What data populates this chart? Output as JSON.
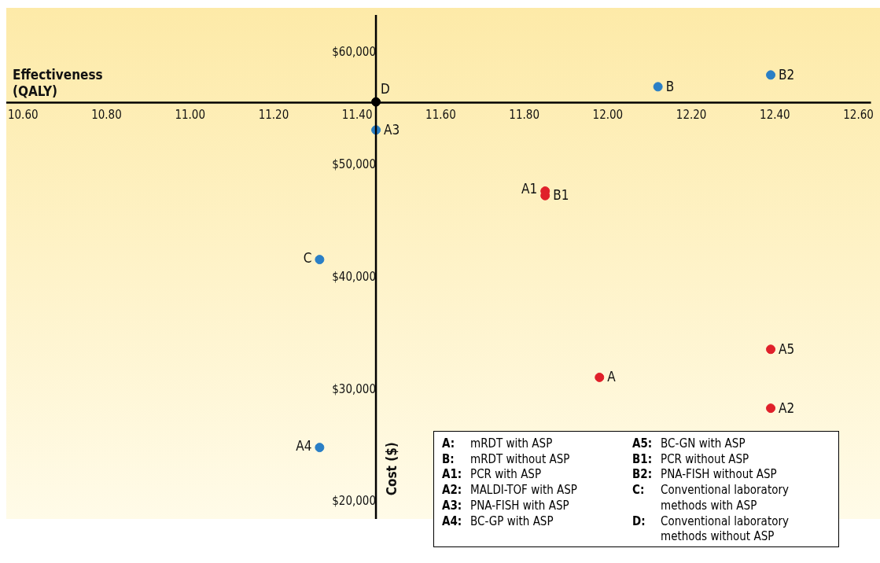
{
  "chart_data": {
    "type": "scatter",
    "xlabel": "Effectiveness\n(QALY)",
    "ylabel": "Cost ($)",
    "xlim": [
      10.56,
      12.63
    ],
    "ylim": [
      18480,
      63400
    ],
    "xticks": [
      {
        "value": 10.6,
        "label": "10.60"
      },
      {
        "value": 10.8,
        "label": "10.80"
      },
      {
        "value": 11.0,
        "label": "11.00"
      },
      {
        "value": 11.2,
        "label": "11.20"
      },
      {
        "value": 11.4,
        "label": "11.40"
      },
      {
        "value": 11.6,
        "label": "11.60"
      },
      {
        "value": 11.8,
        "label": "11.80"
      },
      {
        "value": 12.0,
        "label": "12.00"
      },
      {
        "value": 12.2,
        "label": "12.20"
      },
      {
        "value": 12.4,
        "label": "12.40"
      },
      {
        "value": 12.6,
        "label": "12.60"
      }
    ],
    "yticks": [
      {
        "value": 20000,
        "label": "$20,000"
      },
      {
        "value": 30000,
        "label": "$30,000"
      },
      {
        "value": 40000,
        "label": "$40,000"
      },
      {
        "value": 50000,
        "label": "$50,000"
      },
      {
        "value": 60000,
        "label": "$60,000"
      }
    ],
    "grid": false,
    "legend": false,
    "marker": "circle",
    "series": [
      {
        "name": "D",
        "color": "#000000",
        "x": [
          11.445
        ],
        "values": [
          55650
        ]
      },
      {
        "name": "B",
        "color": "#2a7fc6",
        "x": [
          12.12
        ],
        "values": [
          57000
        ]
      },
      {
        "name": "B2",
        "color": "#2a7fc6",
        "x": [
          12.39
        ],
        "values": [
          58050
        ]
      },
      {
        "name": "A3",
        "color": "#2a7fc6",
        "x": [
          11.445
        ],
        "values": [
          53150
        ]
      },
      {
        "name": "A1",
        "color": "#e0202a",
        "x": [
          11.85
        ],
        "values": [
          47700
        ]
      },
      {
        "name": "B1",
        "color": "#e0202a",
        "x": [
          11.85
        ],
        "values": [
          47300
        ]
      },
      {
        "name": "C",
        "color": "#2a7fc6",
        "x": [
          11.31
        ],
        "values": [
          41600
        ]
      },
      {
        "name": "A5",
        "color": "#e0202a",
        "x": [
          12.39
        ],
        "values": [
          33600
        ]
      },
      {
        "name": "A",
        "color": "#e0202a",
        "x": [
          11.98
        ],
        "values": [
          31100
        ]
      },
      {
        "name": "A2",
        "color": "#e0202a",
        "x": [
          12.39
        ],
        "values": [
          28350
        ]
      },
      {
        "name": "A4",
        "color": "#2a7fc6",
        "x": [
          11.31
        ],
        "values": [
          24850
        ]
      }
    ],
    "annotations": [
      "A: mRDT with ASP",
      "B: mRDT without ASP",
      "A1: PCR with ASP",
      "A2: MALDI-TOF with ASP",
      "A3: PNA-FISH with ASP",
      "A4: BC-GP with ASP",
      "A5: BC-GN with ASP",
      "B1: PCR without ASP",
      "B2: PNA-FISH without ASP",
      "C: Conventional laboratory methods with ASP",
      "D: Conventional laboratory methods without ASP"
    ]
  }
}
